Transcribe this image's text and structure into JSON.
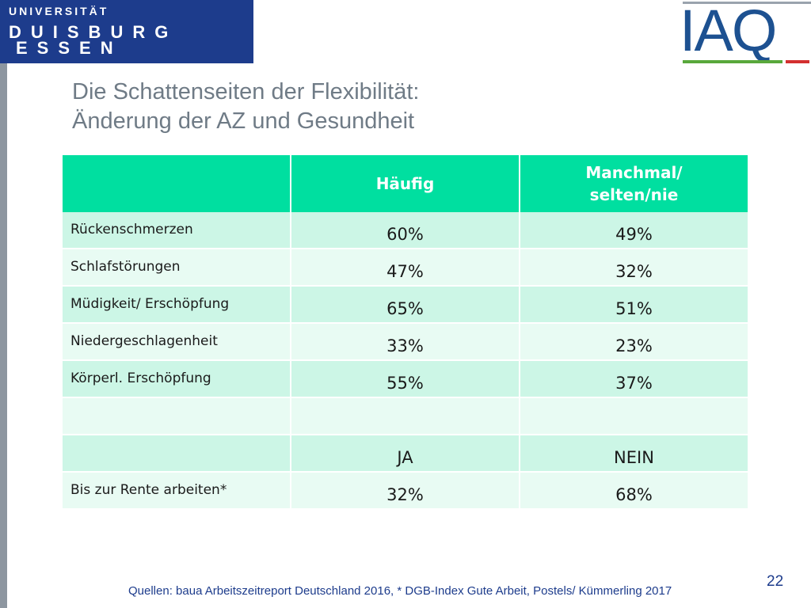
{
  "logo_university": {
    "line1": "UNIVERSITÄT",
    "line2": "DUISBURG",
    "line3": "ESSEN"
  },
  "logo_iaq": "IAQ",
  "title": {
    "line1": "Die Schattenseiten der Flexibilität:",
    "line2": "Änderung der AZ und Gesundheit"
  },
  "table": {
    "headers": [
      "",
      "Häufig",
      "Manchmal/ selten/nie"
    ],
    "rows": [
      {
        "label": "Rückenschmerzen",
        "a": "60%",
        "b": "49%"
      },
      {
        "label": "Schlafstörungen",
        "a": "47%",
        "b": "32%"
      },
      {
        "label": "Müdigkeit/ Erschöpfung",
        "a": "65%",
        "b": "51%"
      },
      {
        "label": "Niedergeschlagenheit",
        "a": "33%",
        "b": "23%"
      },
      {
        "label": "Körperl. Erschöpfung",
        "a": "55%",
        "b": "37%"
      },
      {
        "label": "",
        "a": "",
        "b": ""
      },
      {
        "label": "",
        "a": "JA",
        "b": "NEIN"
      },
      {
        "label": "Bis zur Rente arbeiten*",
        "a": "32%",
        "b": "68%"
      }
    ]
  },
  "footer": "Quellen: baua Arbeitszeitreport Deutschland 2016, * DGB-Index Gute Arbeit, Postels/ Kümmerling 2017",
  "page_number": "22",
  "colors": {
    "header_bg": "#00dfa0",
    "row_dark": "#ccf6e6",
    "row_light": "#e8fbf3",
    "uni_blue": "#1d3c8c",
    "title_gray": "#6f7b86"
  }
}
